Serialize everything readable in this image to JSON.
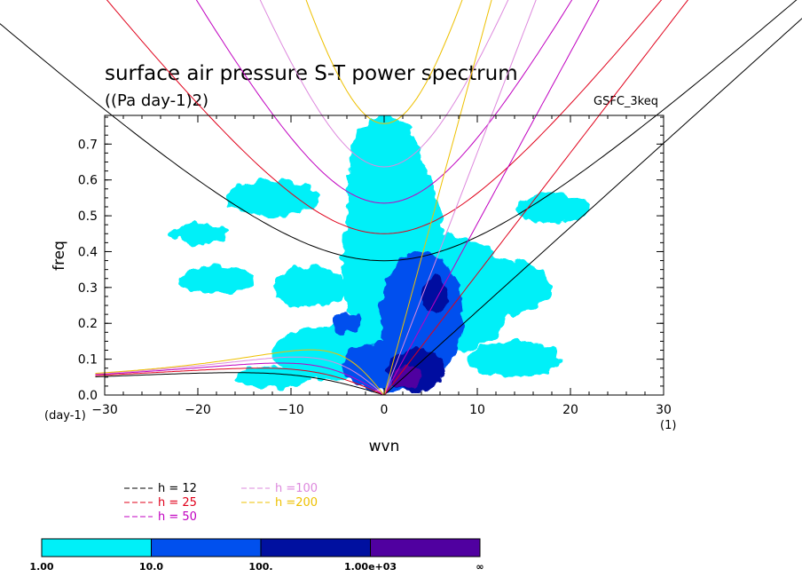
{
  "chart_data": {
    "type": "heatmap",
    "title": "surface air pressure S-T power spectrum",
    "subtitle": "((Pa day-1)2)",
    "model": "GSFC_3keq",
    "xlabel": "wvn",
    "ylabel": "freq",
    "x_unit": "(1)",
    "y_unit": "(day-1)",
    "xlim": [
      -30,
      30
    ],
    "ylim": [
      0,
      0.78
    ],
    "xticks": [
      "-30",
      "-20",
      "-10",
      "0",
      "10",
      "20",
      "30"
    ],
    "yticks": [
      "0.0",
      "0.1",
      "0.2",
      "0.3",
      "0.4",
      "0.5",
      "0.6",
      "0.7"
    ],
    "legend": [
      {
        "label": "h = 12",
        "color": "#000000",
        "h": 12
      },
      {
        "label": "h = 25",
        "color": "#e0001a",
        "h": 25
      },
      {
        "label": "h = 50",
        "color": "#c000c0",
        "h": 50
      },
      {
        "label": "h =100",
        "color": "#dd88dd",
        "h": 100
      },
      {
        "label": "h =200",
        "color": "#eec000",
        "h": 200
      }
    ],
    "colorbar": {
      "levels": [
        "1.00",
        "10.0",
        "100.",
        "1.00e+03",
        "∞"
      ],
      "colors": [
        "#00f0f8",
        "#0050ee",
        "#0010a0",
        "#5000a0"
      ]
    },
    "contour_regions": [
      {
        "level": 0,
        "center": [
          1,
          0.38
        ],
        "rx": 5.5,
        "ry": 0.34
      },
      {
        "level": 0,
        "center": [
          0,
          0.62
        ],
        "rx": 4,
        "ry": 0.16
      },
      {
        "level": 0,
        "center": [
          6,
          0.28
        ],
        "rx": 8,
        "ry": 0.17
      },
      {
        "level": 0,
        "center": [
          -4,
          0.12
        ],
        "rx": 8,
        "ry": 0.08
      },
      {
        "level": 0,
        "center": [
          12,
          0.3
        ],
        "rx": 6,
        "ry": 0.08
      },
      {
        "level": 0,
        "center": [
          -12,
          0.55
        ],
        "rx": 5,
        "ry": 0.05
      },
      {
        "level": 0,
        "center": [
          -18,
          0.32
        ],
        "rx": 4,
        "ry": 0.04
      },
      {
        "level": 0,
        "center": [
          -8,
          0.3
        ],
        "rx": 4,
        "ry": 0.06
      },
      {
        "level": 0,
        "center": [
          14,
          0.1
        ],
        "rx": 5,
        "ry": 0.05
      },
      {
        "level": 0,
        "center": [
          -12,
          0.05
        ],
        "rx": 4,
        "ry": 0.03
      },
      {
        "level": 0,
        "center": [
          -20,
          0.45
        ],
        "rx": 3,
        "ry": 0.03
      },
      {
        "level": 0,
        "center": [
          18,
          0.52
        ],
        "rx": 4,
        "ry": 0.04
      },
      {
        "level": 1,
        "center": [
          4,
          0.22
        ],
        "rx": 4.5,
        "ry": 0.18
      },
      {
        "level": 1,
        "center": [
          0.5,
          0.08
        ],
        "rx": 5,
        "ry": 0.07
      },
      {
        "level": 1,
        "center": [
          -4,
          0.2
        ],
        "rx": 1.5,
        "ry": 0.03
      },
      {
        "level": 2,
        "center": [
          3.5,
          0.07
        ],
        "rx": 3,
        "ry": 0.06
      },
      {
        "level": 2,
        "center": [
          5.5,
          0.28
        ],
        "rx": 1.5,
        "ry": 0.05
      },
      {
        "level": 3,
        "center": [
          2.5,
          0.05
        ],
        "rx": 1.5,
        "ry": 0.03
      }
    ]
  }
}
